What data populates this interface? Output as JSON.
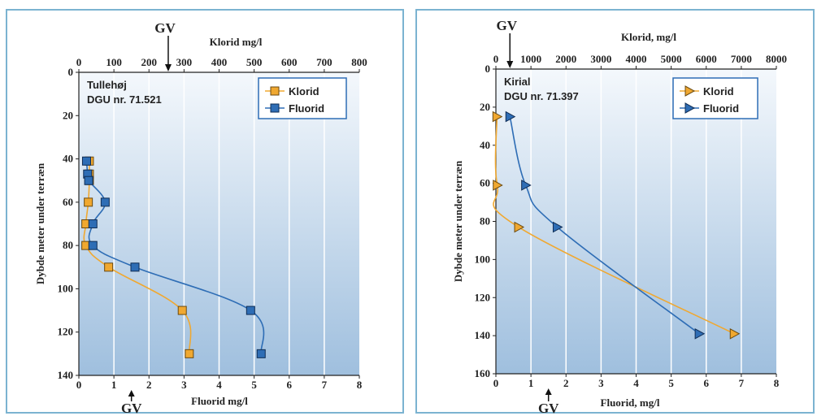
{
  "colors": {
    "klorid": "#f0a830",
    "fluorid": "#2e6db5",
    "plot_bg_top": "#f4f8fc",
    "plot_bg_bottom": "#9fbfde",
    "frame": "#7bb3d1"
  },
  "chart_data": [
    {
      "type": "line",
      "site": "Tullehøj",
      "dgu": "DGU nr. 71.521",
      "top_axis_title": "Klorid mg/l",
      "bottom_axis_title": "Fluorid mg/l",
      "ylabel": "Dybde meter under terræn",
      "gv_top": "GV",
      "gv_bottom": "GV",
      "gv_top_value": 255,
      "gv_bottom_value": 1.5,
      "top_xlim": [
        0,
        800
      ],
      "top_ticks": [
        "0",
        "100",
        "200",
        "300",
        "400",
        "500",
        "600",
        "700",
        "800"
      ],
      "bottom_xlim": [
        0,
        8
      ],
      "bottom_ticks": [
        "0",
        "1",
        "2",
        "3",
        "4",
        "5",
        "6",
        "7",
        "8"
      ],
      "ylim": [
        0,
        140
      ],
      "y_ticks": [
        "0",
        "20",
        "40",
        "60",
        "80",
        "100",
        "120",
        "140"
      ],
      "legend": [
        "Klorid",
        "Fluorid"
      ],
      "series": [
        {
          "name": "Klorid",
          "axis": "top",
          "marker": "square",
          "x": [
            30,
            30,
            30,
            27,
            20,
            20,
            85,
            295,
            315
          ],
          "y": [
            41,
            47,
            50,
            60,
            70,
            80,
            90,
            110,
            130
          ]
        },
        {
          "name": "Fluorid",
          "axis": "bottom",
          "marker": "square",
          "x": [
            0.22,
            0.25,
            0.28,
            0.75,
            0.4,
            0.4,
            1.6,
            4.9,
            5.2
          ],
          "y": [
            41,
            47,
            50,
            60,
            70,
            80,
            90,
            110,
            130
          ]
        }
      ]
    },
    {
      "type": "line",
      "site": "Kirial",
      "dgu": "DGU nr. 71.397",
      "top_axis_title": "Klorid, mg/l",
      "bottom_axis_title": "Fluorid, mg/l",
      "ylabel": "Dybde meter under terræn",
      "gv_top": "GV",
      "gv_bottom": "GV",
      "gv_top_value": 400,
      "gv_bottom_value": 1.5,
      "top_xlim": [
        0,
        8000
      ],
      "top_ticks": [
        "0",
        "1000",
        "2000",
        "3000",
        "4000",
        "5000",
        "6000",
        "7000",
        "8000"
      ],
      "bottom_xlim": [
        0,
        8
      ],
      "bottom_ticks": [
        "0",
        "1",
        "2",
        "3",
        "4",
        "5",
        "6",
        "7",
        "8"
      ],
      "ylim": [
        0,
        160
      ],
      "y_ticks": [
        "0",
        "20",
        "40",
        "60",
        "80",
        "100",
        "120",
        "140",
        "160"
      ],
      "legend": [
        "Klorid",
        "Fluorid"
      ],
      "series": [
        {
          "name": "Klorid",
          "axis": "top",
          "marker": "triangle",
          "x": [
            30,
            40,
            650,
            6800
          ],
          "y": [
            25,
            61,
            83,
            139
          ]
        },
        {
          "name": "Fluorid",
          "axis": "bottom",
          "marker": "triangle",
          "x": [
            0.4,
            0.85,
            1.75,
            5.8
          ],
          "y": [
            25,
            61,
            83,
            139
          ]
        }
      ]
    }
  ]
}
